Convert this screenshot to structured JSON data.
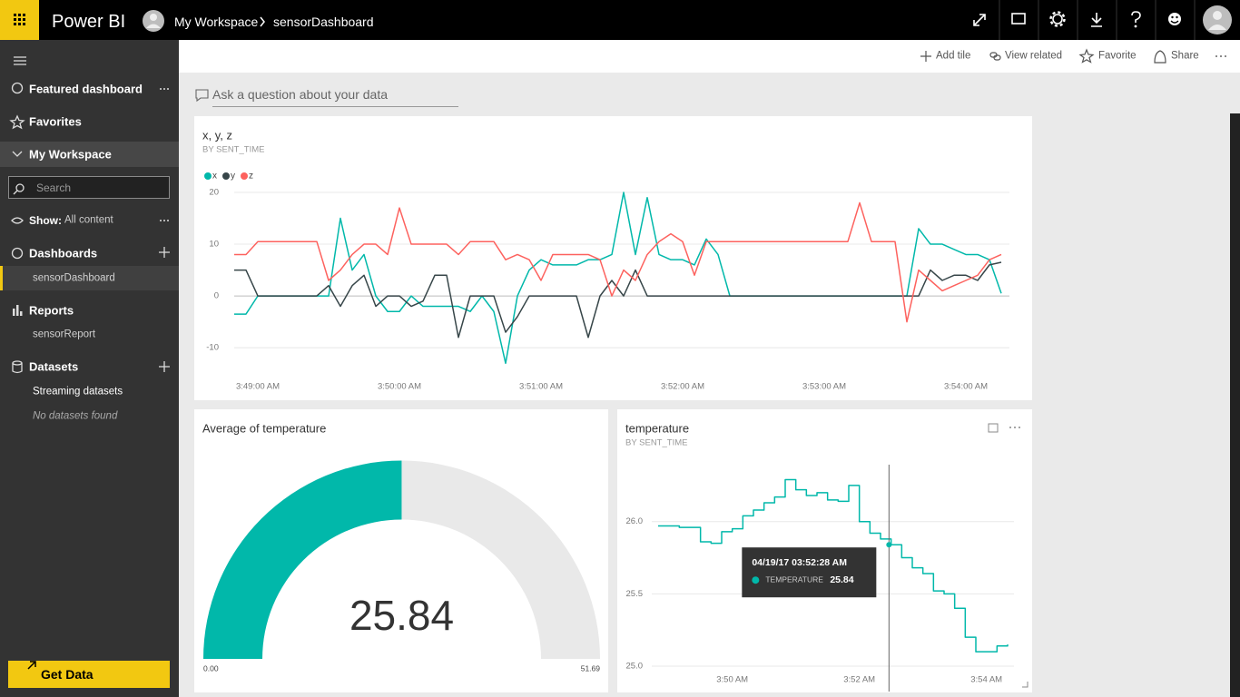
{
  "header": {
    "app": "Power BI",
    "breadcrumb": [
      "My Workspace",
      "sensorDashboard"
    ]
  },
  "toolbar": [
    "Add tile",
    "View related",
    "Favorite",
    "Share"
  ],
  "qa": {
    "placeholder": "Ask a question about your data"
  },
  "nav": {
    "featured": "Featured dashboard",
    "favorites": "Favorites",
    "workspace": "My Workspace",
    "search": "Search",
    "show_label": "Show:",
    "show_value": "All content",
    "sections": [
      {
        "title": "Dashboards",
        "items": [
          "sensorDashboard"
        ]
      },
      {
        "title": "Reports",
        "items": [
          "sensorReport"
        ]
      },
      {
        "title": "Datasets",
        "items": [
          "Streaming datasets",
          "No datasets found"
        ]
      }
    ],
    "get_data": "Get Data"
  },
  "chart_data": [
    {
      "type": "line",
      "title": "x, y, z",
      "subtitle": "BY SENT_TIME",
      "grid": true,
      "legend": "top-left",
      "x": [
        "3:48:50 AM",
        "3:48:55 AM",
        "3:49:00 AM",
        "3:49:05 AM",
        "3:49:10 AM",
        "3:49:15 AM",
        "3:49:20 AM",
        "3:49:25 AM",
        "3:49:30 AM",
        "3:49:35 AM",
        "3:49:40 AM",
        "3:49:45 AM",
        "3:49:50 AM",
        "3:49:55 AM",
        "3:50:00 AM",
        "3:50:05 AM",
        "3:50:10 AM",
        "3:50:15 AM",
        "3:50:20 AM",
        "3:50:25 AM",
        "3:50:30 AM",
        "3:50:35 AM",
        "3:50:40 AM",
        "3:50:45 AM",
        "3:50:50 AM",
        "3:50:55 AM",
        "3:51:00 AM",
        "3:51:05 AM",
        "3:51:10 AM",
        "3:51:15 AM",
        "3:51:20 AM",
        "3:51:25 AM",
        "3:51:30 AM",
        "3:51:35 AM",
        "3:51:40 AM",
        "3:51:45 AM",
        "3:51:50 AM",
        "3:51:55 AM",
        "3:52:00 AM",
        "3:52:05 AM",
        "3:52:10 AM",
        "3:52:15 AM",
        "3:52:20 AM",
        "3:52:25 AM",
        "3:52:30 AM",
        "3:52:35 AM",
        "3:52:40 AM",
        "3:52:45 AM",
        "3:52:50 AM",
        "3:52:55 AM",
        "3:53:00 AM",
        "3:53:05 AM",
        "3:53:10 AM",
        "3:53:15 AM",
        "3:53:20 AM",
        "3:53:25 AM",
        "3:53:30 AM",
        "3:53:35 AM",
        "3:53:40 AM",
        "3:53:45 AM",
        "3:53:50 AM",
        "3:53:55 AM",
        "3:54:00 AM",
        "3:54:05 AM",
        "3:54:10 AM",
        "3:54:15 AM"
      ],
      "series": [
        {
          "name": "x",
          "color": "#01b8aa",
          "values": [
            -3.5,
            -3.5,
            0,
            0,
            0,
            0,
            0,
            0,
            0,
            15,
            5,
            8,
            0,
            -3,
            -3,
            0,
            -2,
            -2,
            -2,
            -2,
            -3,
            0,
            -3,
            -13,
            0,
            5,
            7,
            6,
            6,
            6,
            7,
            7,
            8,
            20,
            8,
            19,
            8,
            7,
            7,
            6,
            11,
            8,
            0,
            0,
            0,
            0,
            0,
            0,
            0,
            0,
            0,
            0,
            0,
            0,
            0,
            0,
            0,
            0,
            13,
            10,
            10,
            9,
            8,
            8,
            7,
            0.5
          ]
        },
        {
          "name": "y",
          "color": "#374649",
          "values": [
            5,
            5,
            0,
            0,
            0,
            0,
            0,
            0,
            2,
            -2,
            2,
            4,
            -2,
            0,
            0,
            -2,
            -1,
            4,
            4,
            -8,
            0,
            0,
            0,
            -7,
            -4,
            0,
            0,
            0,
            0,
            0,
            -8,
            0,
            3,
            0,
            5,
            0,
            0,
            0,
            0,
            0,
            0,
            0,
            0,
            0,
            0,
            0,
            0,
            0,
            0,
            0,
            0,
            0,
            0,
            0,
            0,
            0,
            0,
            0,
            0,
            5,
            3,
            4,
            4,
            3,
            6,
            6.5
          ]
        },
        {
          "name": "z",
          "color": "#fd625e",
          "values": [
            8,
            8,
            10.5,
            10.5,
            10.5,
            10.5,
            10.5,
            10.5,
            3,
            5,
            8,
            10,
            10,
            8,
            17,
            10,
            10,
            10,
            10,
            8,
            10.5,
            10.5,
            10.5,
            7,
            8,
            7,
            3,
            8,
            8,
            8,
            8,
            7,
            0,
            5,
            3,
            8,
            10.5,
            12,
            10.5,
            4,
            10.5,
            10.5,
            10.5,
            10.5,
            10.5,
            10.5,
            10.5,
            10.5,
            10.5,
            10.5,
            10.5,
            10.5,
            10.5,
            18,
            10.5,
            10.5,
            10.5,
            -5,
            5,
            3,
            1,
            2,
            3,
            4,
            7,
            8
          ]
        }
      ],
      "xlim": [
        "3:48:50 AM",
        "3:54:15 AM"
      ],
      "xticks": [
        "3:49:00 AM",
        "3:50:00 AM",
        "3:51:00 AM",
        "3:52:00 AM",
        "3:53:00 AM",
        "3:54:00 AM"
      ],
      "ylim": [
        -14,
        20
      ],
      "yticks": [
        -10,
        0,
        10,
        20
      ]
    },
    {
      "type": "gauge",
      "title": "Average of temperature",
      "value": 25.84,
      "min": {
        "value": 0,
        "label": "0.00"
      },
      "max": {
        "value": 51.69,
        "label": "51.69"
      },
      "color": "#01b8aa",
      "track_color": "#e9e9e9"
    },
    {
      "type": "line",
      "title": "temperature",
      "subtitle": "BY SENT_TIME",
      "grid": true,
      "step": true,
      "color": "#01b8aa",
      "x": [
        "3:48:50 AM",
        "3:49:00 AM",
        "3:49:10 AM",
        "3:49:20 AM",
        "3:49:30 AM",
        "3:49:40 AM",
        "3:49:50 AM",
        "3:50:00 AM",
        "3:50:10 AM",
        "3:50:20 AM",
        "3:50:30 AM",
        "3:50:40 AM",
        "3:50:50 AM",
        "3:51:00 AM",
        "3:51:10 AM",
        "3:51:20 AM",
        "3:51:30 AM",
        "3:51:40 AM",
        "3:51:50 AM",
        "3:52:00 AM",
        "3:52:10 AM",
        "3:52:20 AM",
        "3:52:30 AM",
        "3:52:40 AM",
        "3:52:50 AM",
        "3:53:00 AM",
        "3:53:10 AM",
        "3:53:20 AM",
        "3:53:30 AM",
        "3:53:40 AM",
        "3:53:50 AM",
        "3:54:00 AM",
        "3:54:10 AM",
        "3:54:20 AM"
      ],
      "values": [
        25.97,
        25.97,
        25.96,
        25.96,
        25.86,
        25.85,
        25.93,
        25.95,
        26.04,
        26.08,
        26.13,
        26.17,
        26.29,
        26.22,
        26.18,
        26.2,
        26.15,
        26.14,
        26.25,
        26.0,
        25.92,
        25.88,
        25.84,
        25.75,
        25.68,
        25.64,
        25.52,
        25.5,
        25.4,
        25.2,
        25.1,
        25.1,
        25.14,
        25.15
      ],
      "xlim": [
        "3:48:50 AM",
        "3:54:20 AM"
      ],
      "xticks": [
        "3:50 AM",
        "3:52 AM",
        "3:54 AM"
      ],
      "ylim": [
        25,
        26.4
      ],
      "yticks": [
        {
          "value": 25,
          "label": "25.0"
        },
        {
          "value": 25.5,
          "label": "25.5"
        },
        {
          "value": 26,
          "label": "26.0"
        }
      ],
      "tooltip": {
        "time": "04/19/17 03:52:28 AM",
        "label": "TEMPERATURE",
        "value": 25.84
      }
    }
  ]
}
